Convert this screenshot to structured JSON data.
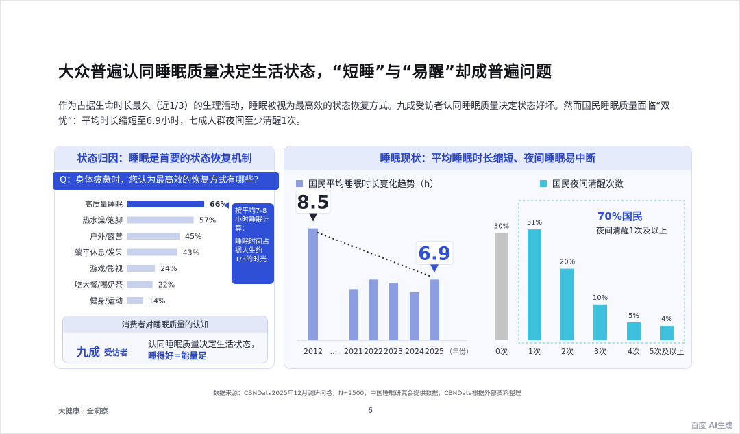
{
  "title": "大众普遍认同睡眠质量决定生活状态，“短睡”与“易醒”却成普遍问题",
  "intro": "作为占据生命时长最久（近1/3）的生理活动，睡眠被视为最高效的状态恢复方式。九成受访者认同睡眠质量决定状态好坏。然而国民睡眠质量面临“双忧”：平均时长缩短至6.9小时，七成人群夜间至少清醒1次。",
  "left_panel": {
    "header": "状态归因：睡眠是首要的状态恢复机制",
    "question": "Q：身体疲惫时，您认为最高效的恢复方式有哪些？",
    "callout_top": "按平均7-8小时睡眠计算：",
    "callout_bottom": "睡眠时间占据人生约1/3的时光",
    "knowledge": {
      "header": "消费者对睡眠质量的认知",
      "big": "九成",
      "small": "受访者",
      "line1": "认同睡眠质量决定生活状态，",
      "line2": "睡得好=能量足"
    }
  },
  "right_panel": {
    "header": "睡眠现状：平均睡眠时长缩短、夜间睡眠易中断",
    "highlight_pct": "70%国民",
    "highlight_text": "夜间清醒1次及以上"
  },
  "chart_data": [
    {
      "type": "bar",
      "orientation": "horizontal",
      "categories": [
        "高质量睡眠",
        "热水澡/泡脚",
        "户外/露营",
        "躺平休息/发呆",
        "游戏/影视",
        "吃大餐/喝奶茶",
        "健身/运动"
      ],
      "values": [
        66,
        57,
        45,
        43,
        24,
        22,
        14
      ],
      "labels": [
        "66%",
        "57%",
        "45%",
        "43%",
        "24%",
        "22%",
        "14%"
      ],
      "xlim": [
        0,
        70
      ],
      "highlight_index": 0,
      "colors": {
        "highlight": "#2e4fd6",
        "normal": "#c9d2ec"
      }
    },
    {
      "type": "bar",
      "title": "国民平均睡眠时长变化趋势（h）",
      "categories": [
        "2012",
        "...",
        "2021",
        "2022",
        "2023",
        "2024",
        "2025"
      ],
      "x_unit": "（年份）",
      "values": [
        8.5,
        null,
        6.6,
        6.9,
        6.8,
        6.5,
        6.9
      ],
      "ylim": [
        5.0,
        8.6
      ],
      "labeled": {
        "2012": "8.5",
        "2025": "6.9"
      },
      "trend_line": true,
      "color": "#8c9de0"
    },
    {
      "type": "bar",
      "title": "国民夜间清醒次数",
      "categories": [
        "0次",
        "1次",
        "2次",
        "3次",
        "4次",
        "5次及以上"
      ],
      "values": [
        30,
        31,
        20,
        10,
        5,
        4
      ],
      "labels": [
        "30%",
        "31%",
        "20%",
        "10%",
        "5%",
        "4%"
      ],
      "ylim": [
        0,
        36
      ],
      "colors": {
        "first": "#c4c4c4",
        "rest": "#3fc1dd"
      }
    }
  ],
  "source": "数据来源：CBNData2025年12月调研问卷，N=2500，中国睡眠研究会提供数据，CBNData根据外部资料整理",
  "footer_left": "大健康 · 全洞察",
  "page_number": "6",
  "watermark": "百度 AI生成"
}
